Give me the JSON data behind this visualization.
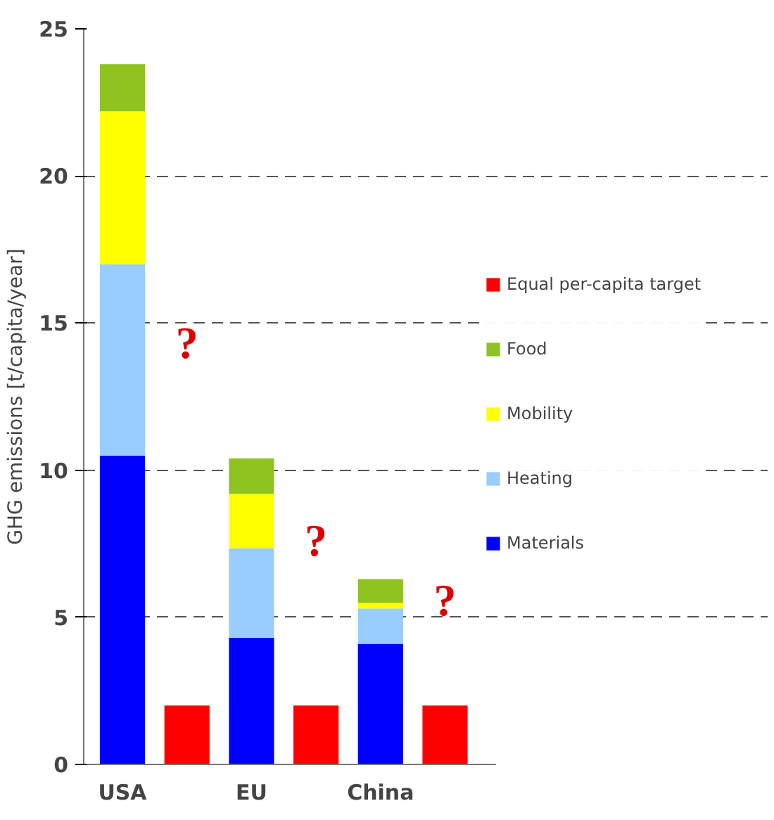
{
  "chart_data": {
    "type": "bar",
    "ylabel": "GHG emissions [t/capita/year]",
    "categories": [
      "USA",
      null,
      "EU",
      null,
      "China",
      null
    ],
    "stacked": true,
    "ylim": [
      0,
      25
    ],
    "yticks": [
      0,
      5,
      10,
      15,
      20,
      25
    ],
    "grid": "y",
    "legend": "right",
    "series": [
      {
        "name": "Materials",
        "color": "#0000ff",
        "values": [
          10.5,
          null,
          4.3,
          null,
          4.1,
          null
        ]
      },
      {
        "name": "Heating",
        "color": "#99ccff",
        "values": [
          6.5,
          null,
          3.05,
          null,
          1.2,
          null
        ]
      },
      {
        "name": "Mobility",
        "color": "#ffff00",
        "values": [
          5.2,
          null,
          1.85,
          null,
          0.2,
          null
        ]
      },
      {
        "name": "Food",
        "color": "#8fc31f",
        "values": [
          1.6,
          null,
          1.2,
          null,
          0.8,
          null
        ]
      },
      {
        "name": "Equal per-capita target",
        "color": "#ff0000",
        "values": [
          null,
          2,
          null,
          2,
          null,
          2
        ]
      }
    ],
    "annotations": [
      "?",
      "?",
      "?"
    ]
  }
}
